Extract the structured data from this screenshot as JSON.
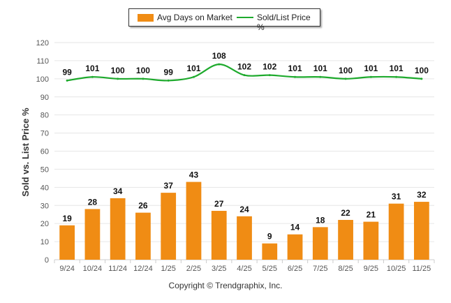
{
  "chart_data": {
    "type": "bar+line",
    "title": "",
    "ylabel": "Sold vs. List Price %",
    "xlabel": "",
    "ylim": [
      0,
      120
    ],
    "yticks": [
      0,
      10,
      20,
      30,
      40,
      50,
      60,
      70,
      80,
      90,
      100,
      110,
      120
    ],
    "grid": true,
    "legend_position": "top-center",
    "categories": [
      "9/24",
      "10/24",
      "11/24",
      "12/24",
      "1/25",
      "2/25",
      "3/25",
      "4/25",
      "5/25",
      "6/25",
      "7/25",
      "8/25",
      "9/25",
      "10/25",
      "11/25"
    ],
    "series": [
      {
        "name": "Avg Days on Market",
        "type": "bar",
        "color": "#F08C14",
        "values": [
          19,
          28,
          34,
          26,
          37,
          43,
          27,
          24,
          9,
          14,
          18,
          22,
          21,
          31,
          32
        ]
      },
      {
        "name": "Sold/List Price %",
        "type": "line",
        "color": "#1EAA2D",
        "values": [
          99,
          101,
          100,
          100,
          99,
          101,
          108,
          102,
          102,
          101,
          101,
          100,
          101,
          101,
          100
        ]
      }
    ]
  },
  "footer": {
    "copyright": "Copyright © Trendgraphix, Inc."
  }
}
